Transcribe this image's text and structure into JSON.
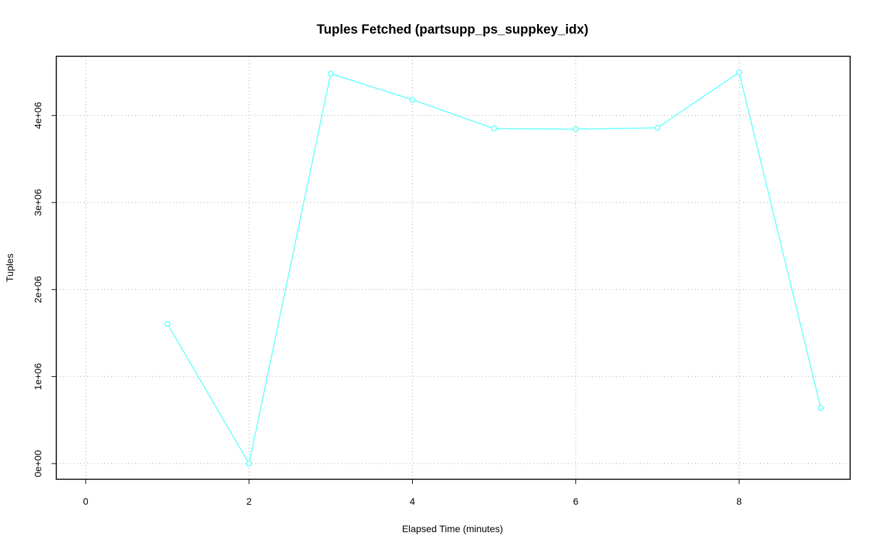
{
  "chart_data": {
    "type": "line",
    "title": "Tuples Fetched (partsupp_ps_suppkey_idx)",
    "x_label": "Elapsed Time (minutes)",
    "y_label": "Tuples",
    "x": [
      1,
      2,
      3,
      4,
      5,
      6,
      7,
      8,
      9
    ],
    "series": [
      {
        "color": "#66ffff",
        "values": [
          1606000,
          0,
          4480000,
          4181000,
          3850000,
          3843000,
          3858000,
          4496000,
          638000
        ]
      }
    ],
    "xlim": [
      -0.36,
      9.36
    ],
    "xticks": [
      0,
      2,
      4,
      6,
      8
    ],
    "ylim": [
      -180000,
      4680000
    ],
    "yticks": [
      {
        "value": 0,
        "label": "0e+00"
      },
      {
        "value": 1000000,
        "label": "1e+06"
      },
      {
        "value": 2000000,
        "label": "2e+06"
      },
      {
        "value": 3000000,
        "label": "3e+06"
      },
      {
        "value": 4000000,
        "label": "4e+06"
      }
    ],
    "grid": true
  }
}
